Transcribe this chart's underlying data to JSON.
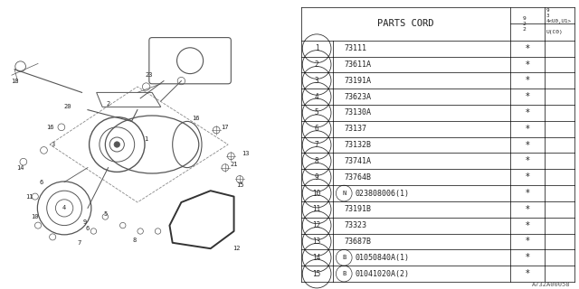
{
  "diagram_code": "A732A00058",
  "bg_color": "#ffffff",
  "rows": [
    {
      "num": "1",
      "part": "73111",
      "prefix": ""
    },
    {
      "num": "2",
      "part": "73611A",
      "prefix": ""
    },
    {
      "num": "3",
      "part": "73191A",
      "prefix": ""
    },
    {
      "num": "4",
      "part": "73623A",
      "prefix": ""
    },
    {
      "num": "5",
      "part": "73130A",
      "prefix": ""
    },
    {
      "num": "6",
      "part": "73137",
      "prefix": ""
    },
    {
      "num": "7",
      "part": "73132B",
      "prefix": ""
    },
    {
      "num": "8",
      "part": "73741A",
      "prefix": ""
    },
    {
      "num": "9",
      "part": "73764B",
      "prefix": ""
    },
    {
      "num": "10",
      "part": "023808006(1)",
      "prefix": "N"
    },
    {
      "num": "11",
      "part": "73191B",
      "prefix": ""
    },
    {
      "num": "12",
      "part": "73323",
      "prefix": ""
    },
    {
      "num": "13",
      "part": "73687B",
      "prefix": ""
    },
    {
      "num": "14",
      "part": "01050840A(1)",
      "prefix": "B"
    },
    {
      "num": "15",
      "part": "01041020A(2)",
      "prefix": "B"
    }
  ]
}
